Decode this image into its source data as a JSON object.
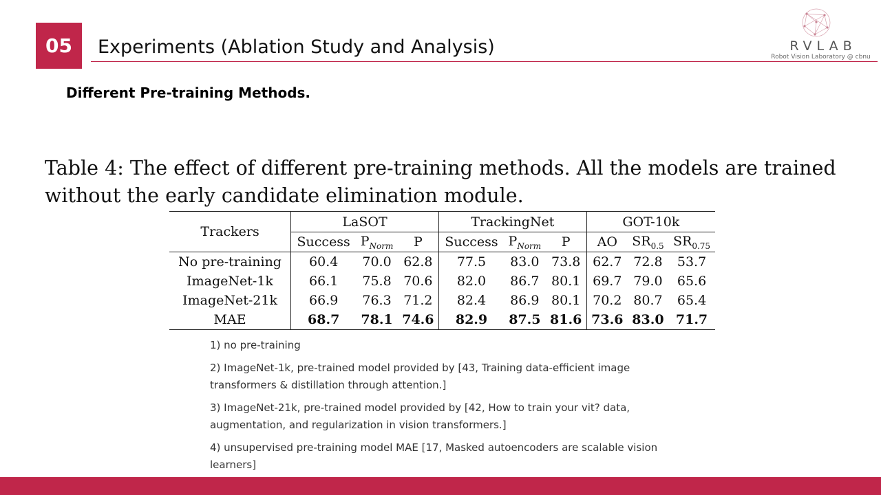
{
  "header": {
    "section_number": "05",
    "title": "Experiments (Ablation Study and Analysis)",
    "accent_color": "#c0264a"
  },
  "logo": {
    "name": "RVLAB",
    "subtitle": "Robot Vision Laboratory @ cbnu"
  },
  "subtitle": "Different Pre-training Methods.",
  "caption": "Table 4: The effect of different pre-training methods. All the models are trained without the early candidate elimination module.",
  "table": {
    "row_header": "Trackers",
    "groups": [
      {
        "name": "LaSOT",
        "cols": [
          {
            "main": "Success",
            "sub": ""
          },
          {
            "main": "P",
            "sub": "Norm"
          },
          {
            "main": "P",
            "sub": ""
          }
        ]
      },
      {
        "name": "TrackingNet",
        "cols": [
          {
            "main": "Success",
            "sub": ""
          },
          {
            "main": "P",
            "sub": "Norm"
          },
          {
            "main": "P",
            "sub": ""
          }
        ]
      },
      {
        "name": "GOT-10k",
        "cols": [
          {
            "main": "AO",
            "sub": ""
          },
          {
            "main": "SR",
            "sub": "0.5"
          },
          {
            "main": "SR",
            "sub": "0.75"
          }
        ]
      }
    ],
    "rows": [
      {
        "name": "No pre-training",
        "values": [
          "60.4",
          "70.0",
          "62.8",
          "77.5",
          "83.0",
          "73.8",
          "62.7",
          "72.8",
          "53.7"
        ]
      },
      {
        "name": "ImageNet-1k",
        "values": [
          "66.1",
          "75.8",
          "70.6",
          "82.0",
          "86.7",
          "80.1",
          "69.7",
          "79.0",
          "65.6"
        ]
      },
      {
        "name": "ImageNet-21k",
        "values": [
          "66.9",
          "76.3",
          "71.2",
          "82.4",
          "86.9",
          "80.1",
          "70.2",
          "80.7",
          "65.4"
        ]
      },
      {
        "name": "MAE",
        "values": [
          "68.7",
          "78.1",
          "74.6",
          "82.9",
          "87.5",
          "81.6",
          "73.6",
          "83.0",
          "71.7"
        ]
      }
    ]
  },
  "notes": [
    "1) no pre-training",
    "2) ImageNet-1k, pre-trained model provided by [43, Training data-efficient image transformers & distillation through attention.]",
    "3) ImageNet-21k, pre-trained model provided by [42, How to train your vit? data, augmentation, and regularization in vision transformers.]",
    "4) unsupervised pre-training model MAE [17, Masked autoencoders are scalable vision learners]"
  ]
}
